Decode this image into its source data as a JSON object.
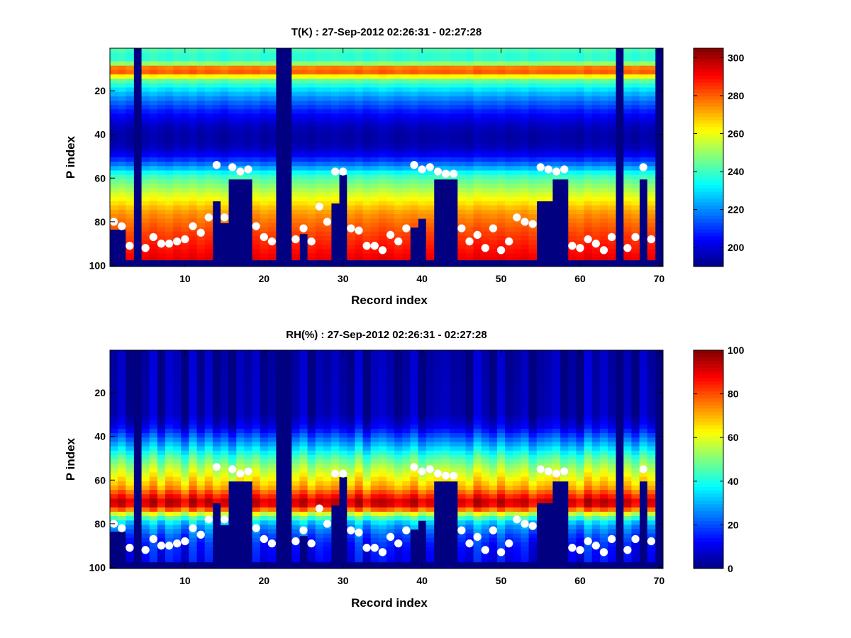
{
  "figure": {
    "background": "#ffffff",
    "colormap": "jet"
  },
  "chart_data": [
    {
      "type": "heatmap",
      "id": "temperature",
      "title": "T(K) : 27-Sep-2012 02:26:31 - 02:27:28",
      "xlabel": "Record index",
      "ylabel": "P index",
      "xlim": [
        0.5,
        70.5
      ],
      "ylim": [
        0.5,
        100.5
      ],
      "y_reversed": true,
      "xticks": [
        10,
        20,
        30,
        40,
        50,
        60,
        70
      ],
      "yticks": [
        20,
        40,
        60,
        80,
        100
      ],
      "colorbar": {
        "range": [
          190,
          305
        ],
        "ticks": [
          200,
          220,
          240,
          260,
          280,
          300
        ]
      },
      "fill_value": 190,
      "missing_records": [
        4,
        22,
        23,
        65,
        70
      ],
      "profile_levels": [
        1,
        5,
        7,
        9,
        10,
        12,
        15,
        20,
        25,
        30,
        35,
        40,
        45,
        50,
        55,
        58,
        60,
        65,
        70,
        75,
        80,
        85,
        90,
        95,
        100
      ],
      "profile_values": [
        242,
        236,
        244,
        268,
        285,
        278,
        245,
        228,
        216,
        206,
        198,
        194,
        195,
        204,
        222,
        236,
        242,
        252,
        262,
        272,
        278,
        283,
        287,
        291,
        297
      ],
      "record_offsets": [
        0,
        2,
        -2,
        0,
        0,
        3,
        0,
        -2,
        2,
        0,
        3,
        -1,
        2,
        0,
        -3,
        1,
        2,
        0,
        2,
        -2,
        0,
        0,
        0,
        0,
        0,
        -2,
        1,
        0,
        2,
        0,
        -1,
        2,
        -2,
        0,
        3,
        1,
        -2,
        0,
        2,
        -1,
        0,
        1,
        2,
        0,
        0,
        -2,
        3,
        1,
        0,
        2,
        -1,
        0,
        2,
        -2,
        0,
        1,
        2,
        0,
        0,
        -2,
        3,
        0,
        2,
        0,
        0,
        1,
        -2,
        2,
        0,
        0
      ]
    },
    {
      "type": "heatmap",
      "id": "humidity",
      "title": "RH(%) : 27-Sep-2012 02:26:31 - 02:27:28",
      "xlabel": "Record index",
      "ylabel": "P index",
      "xlim": [
        0.5,
        70.5
      ],
      "ylim": [
        0.5,
        100.5
      ],
      "y_reversed": true,
      "xticks": [
        10,
        20,
        30,
        40,
        50,
        60,
        70
      ],
      "yticks": [
        20,
        40,
        60,
        80,
        100
      ],
      "colorbar": {
        "range": [
          0,
          100
        ],
        "ticks": [
          0,
          20,
          40,
          60,
          80,
          100
        ]
      },
      "fill_value": 0,
      "missing_records": [
        4,
        22,
        23,
        65,
        70
      ],
      "profile_levels": [
        1,
        30,
        36,
        40,
        45,
        50,
        55,
        60,
        64,
        66,
        68,
        70,
        72,
        74,
        76,
        80,
        85,
        90,
        95,
        100
      ],
      "profile_values": [
        3,
        4,
        10,
        20,
        32,
        45,
        55,
        64,
        72,
        80,
        86,
        93,
        88,
        72,
        52,
        30,
        20,
        14,
        12,
        10
      ],
      "record_offsets": [
        0,
        8,
        -6,
        0,
        0,
        12,
        -8,
        10,
        5,
        -10,
        12,
        -4,
        9,
        -6,
        2,
        -12,
        6,
        0,
        8,
        -5,
        0,
        0,
        0,
        0,
        10,
        -8,
        4,
        0,
        7,
        0,
        -5,
        12,
        -10,
        5,
        8,
        2,
        -6,
        0,
        10,
        -8,
        0,
        3,
        5,
        0,
        0,
        -8,
        12,
        2,
        -6,
        10,
        -4,
        0,
        6,
        -10,
        0,
        3,
        8,
        -6,
        0,
        -10,
        12,
        0,
        8,
        0,
        0,
        5,
        -8,
        10,
        0,
        0
      ]
    }
  ],
  "boundaries": {
    "description_of_series": "Lowest valid P index per record (below = fill)",
    "lowest_valid_level": [
      83,
      83,
      97,
      0,
      97,
      97,
      97,
      97,
      97,
      97,
      97,
      97,
      97,
      70,
      80,
      60,
      60,
      60,
      97,
      97,
      97,
      0,
      0,
      97,
      85,
      97,
      97,
      97,
      71,
      58,
      97,
      97,
      97,
      97,
      97,
      97,
      97,
      97,
      82,
      78,
      97,
      60,
      60,
      60,
      97,
      97,
      97,
      97,
      97,
      97,
      97,
      97,
      97,
      97,
      70,
      70,
      60,
      60,
      97,
      97,
      97,
      97,
      97,
      97,
      0,
      97,
      97,
      60,
      97,
      0
    ],
    "marker_records": [
      1,
      2,
      3,
      5,
      6,
      7,
      8,
      9,
      10,
      11,
      12,
      13,
      14,
      15,
      16,
      17,
      18,
      19,
      20,
      21,
      24,
      25,
      26,
      27,
      28,
      29,
      30,
      31,
      32,
      33,
      34,
      35,
      36,
      37,
      38,
      39,
      40,
      41,
      42,
      43,
      44,
      45,
      46,
      47,
      48,
      49,
      50,
      51,
      52,
      53,
      54,
      55,
      56,
      57,
      58,
      59,
      60,
      61,
      62,
      63,
      64,
      66,
      67,
      68,
      69
    ],
    "marker_levels": [
      80,
      82,
      91,
      92,
      87,
      90,
      90,
      89,
      88,
      82,
      85,
      78,
      54,
      78,
      55,
      57,
      56,
      82,
      87,
      89,
      88,
      83,
      89,
      73,
      80,
      57,
      57,
      83,
      84,
      91,
      91,
      93,
      86,
      89,
      83,
      54,
      56,
      55,
      57,
      58,
      58,
      83,
      89,
      86,
      92,
      83,
      93,
      89,
      78,
      80,
      81,
      55,
      56,
      57,
      56,
      91,
      92,
      88,
      90,
      93,
      87,
      92,
      87,
      55,
      88
    ],
    "marker_color": "#ffffff"
  }
}
